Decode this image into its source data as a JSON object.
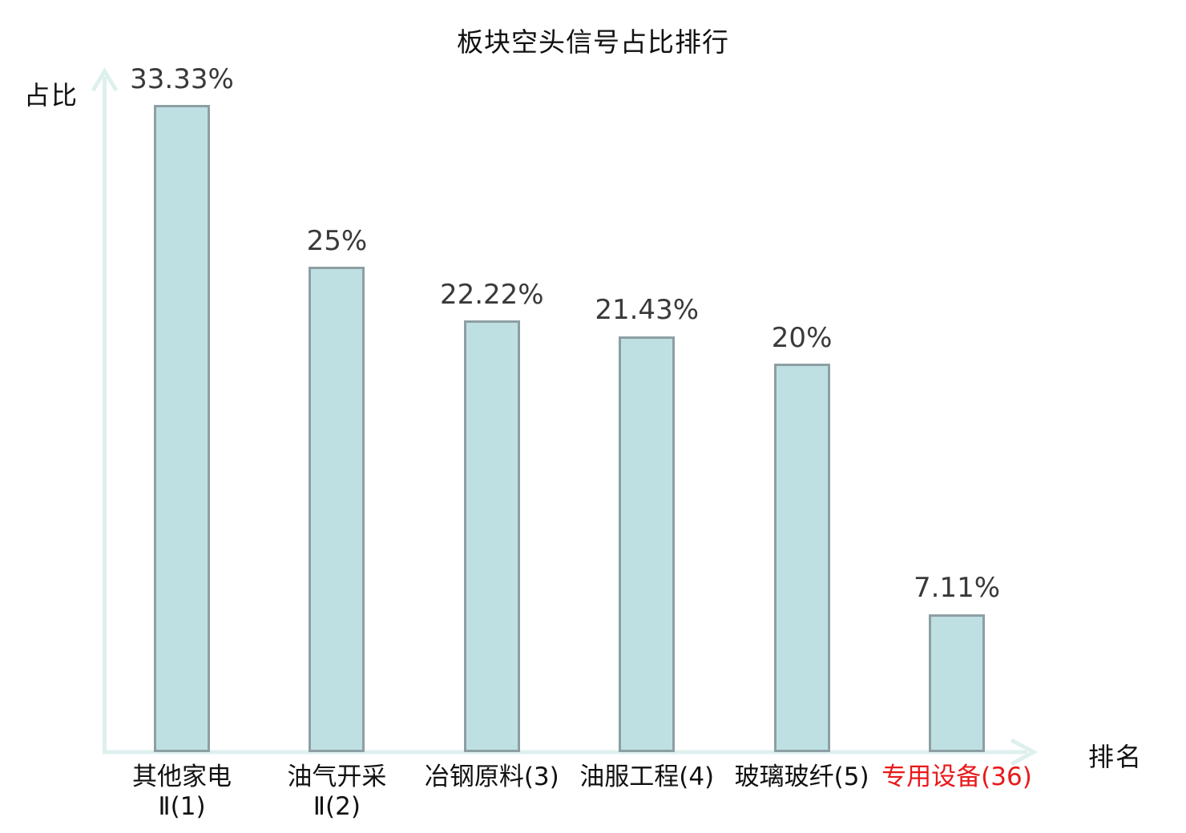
{
  "chart_data": {
    "type": "bar",
    "title": "板块空头信号占比排行",
    "xlabel": "排名",
    "ylabel": "占比",
    "categories": [
      "其他家电\nⅡ(1)",
      "油气开采\nⅡ(2)",
      "冶钢原料(3)",
      "油服工程(4)",
      "玻璃玻纤(5)",
      "专用设备(36)"
    ],
    "values": [
      33.33,
      25,
      22.22,
      21.43,
      20,
      7.11
    ],
    "value_labels": [
      "33.33%",
      "25%",
      "22.22%",
      "21.43%",
      "20%",
      "7.11%"
    ],
    "highlighted_category_index": 5,
    "highlighted_category": "专用设备(36)",
    "ylim": [
      0,
      35
    ],
    "grid": false,
    "legend": "none",
    "colors": {
      "bar_fill": "#bfe0e3",
      "bar_border": "#8d9fa3",
      "axis": "#def0ee",
      "value_label": "#3a3a3a",
      "category_label": "#111111",
      "highlight": "#e8191b"
    }
  }
}
